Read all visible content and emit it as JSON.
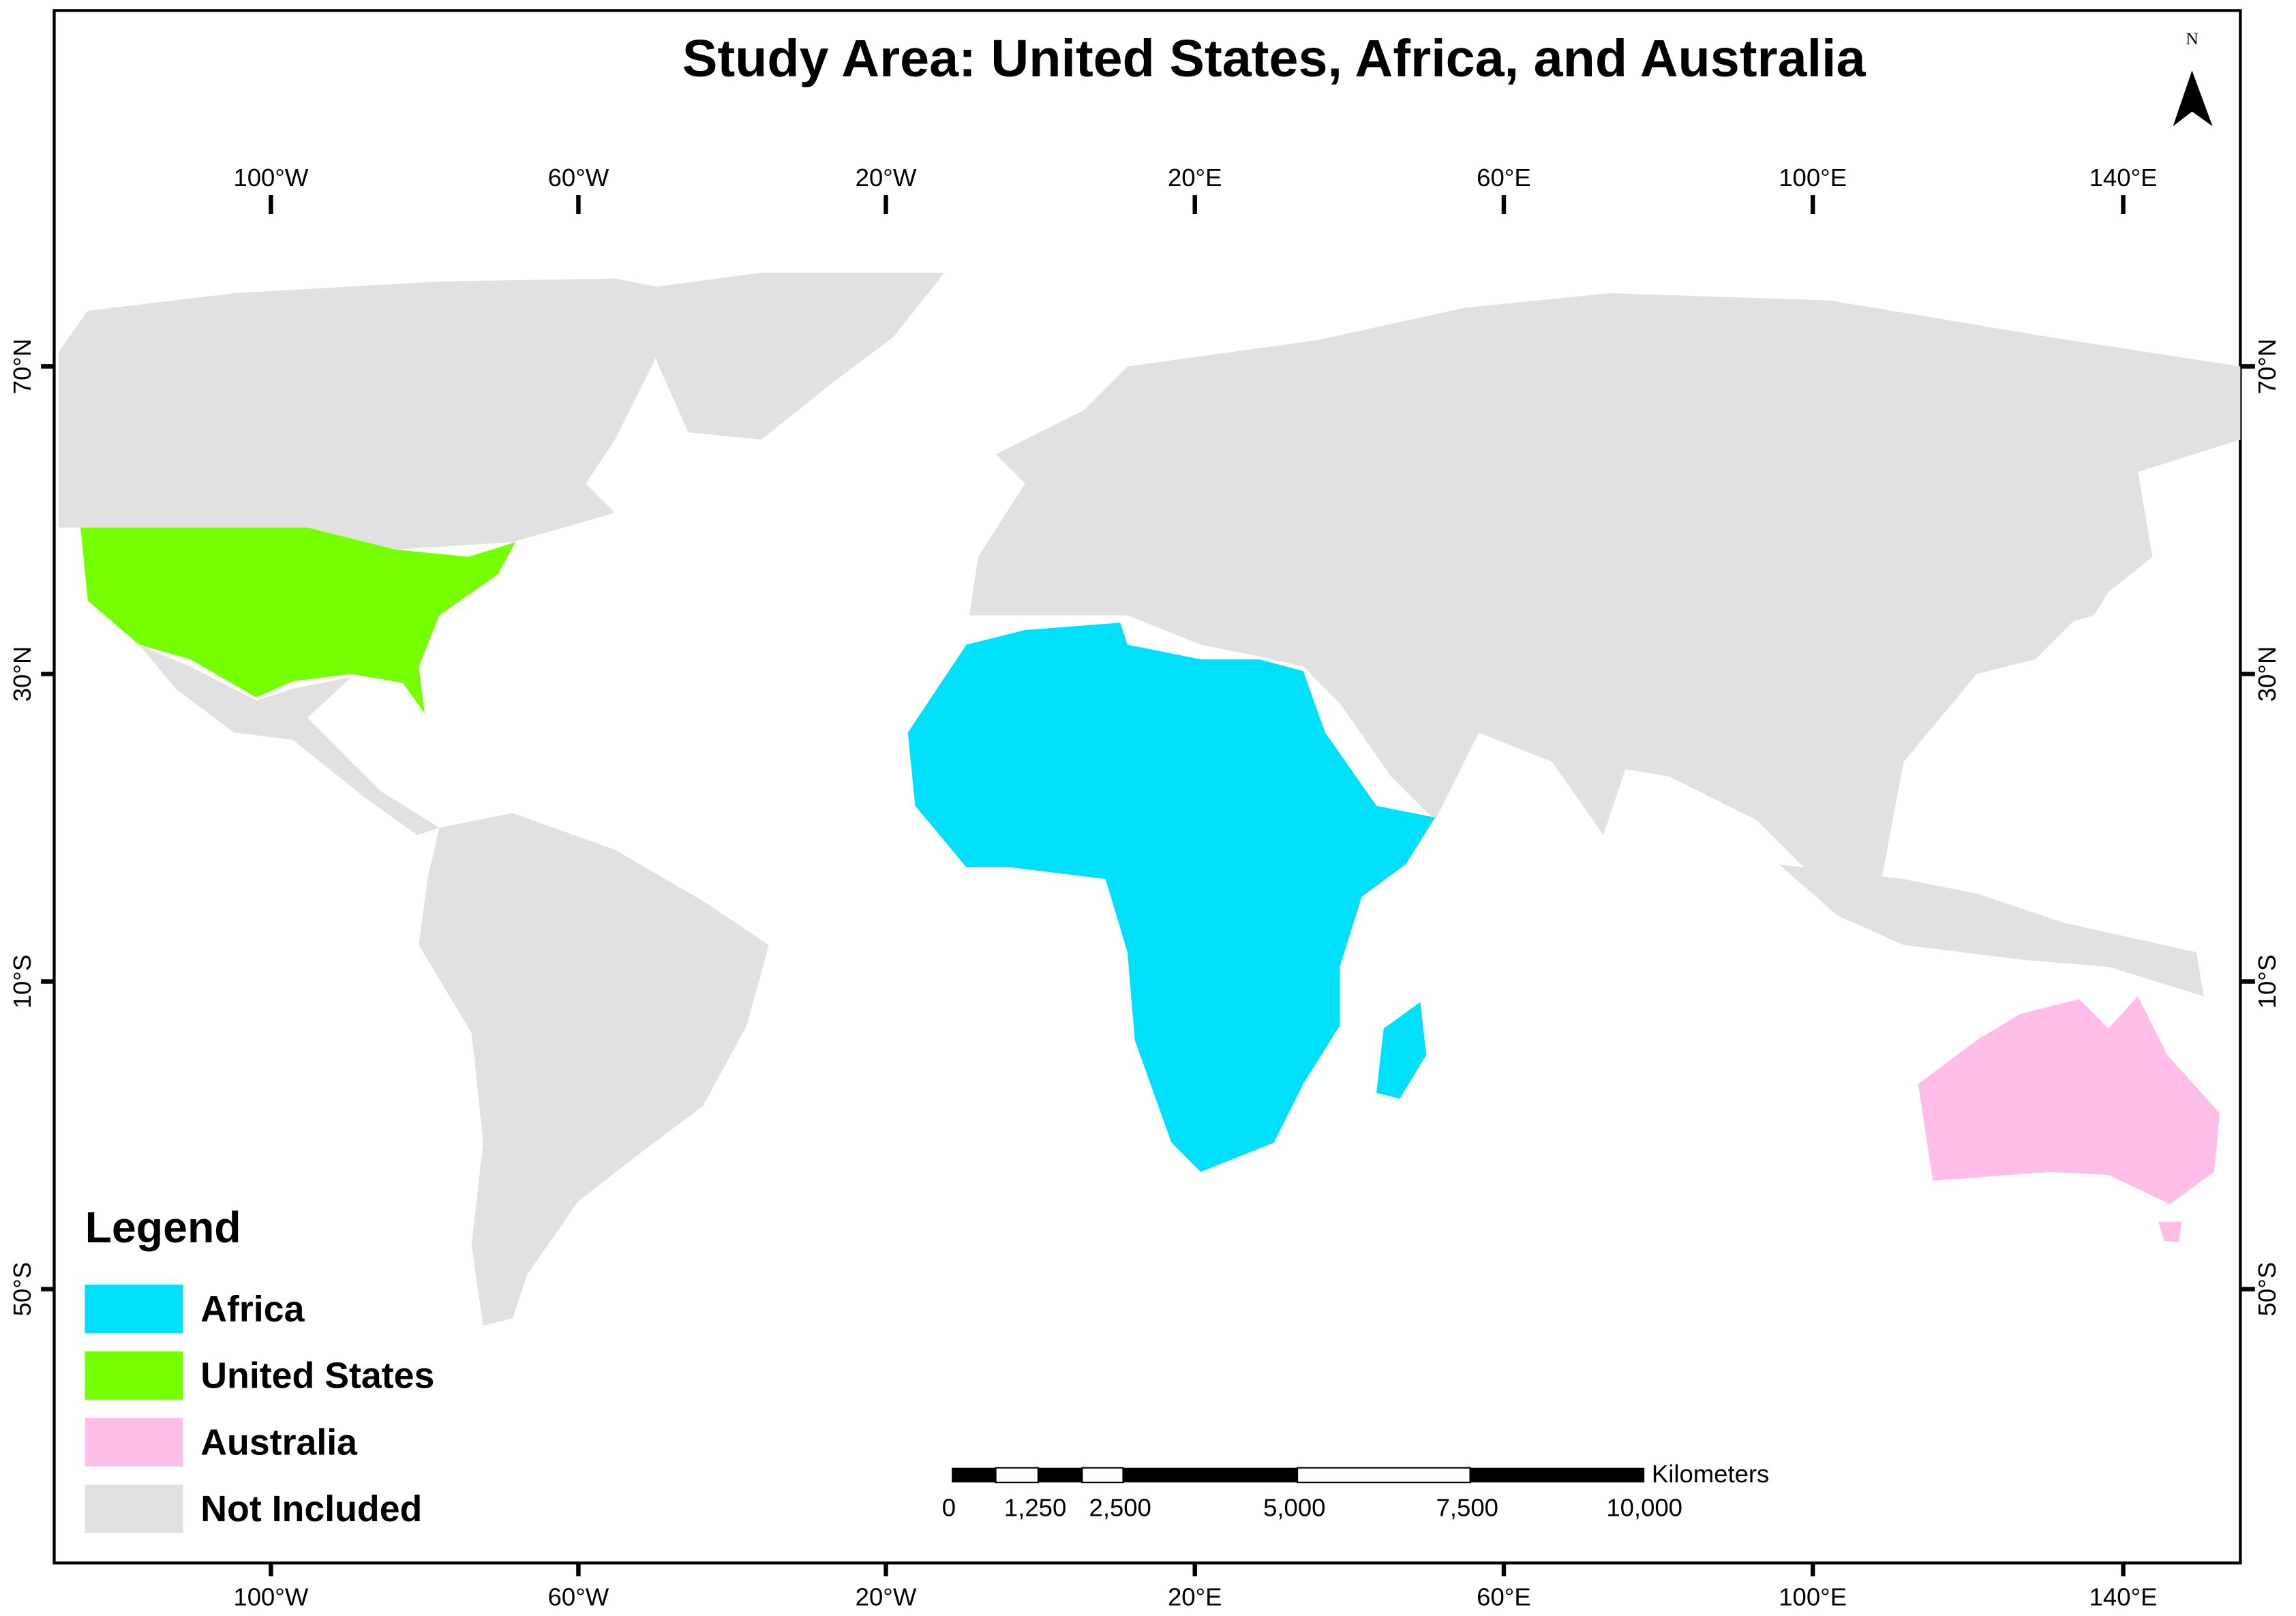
{
  "map": {
    "title": "Study Area: United States, Africa, and Australia",
    "north_arrow": {
      "label": "N"
    },
    "graticule": {
      "lon_labels": [
        "100°W",
        "60°W",
        "20°W",
        "20°E",
        "60°E",
        "100°E",
        "140°E"
      ],
      "lat_labels": [
        "70°N",
        "30°N",
        "10°S",
        "50°S"
      ]
    },
    "legend": {
      "title": "Legend",
      "items": [
        {
          "label": "Africa",
          "color": "#00e0fb"
        },
        {
          "label": "United States",
          "color": "#76ff00"
        },
        {
          "label": "Australia",
          "color": "#ffbee8"
        },
        {
          "label": "Not Included",
          "color": "#e1e1e1"
        }
      ]
    },
    "scale_bar": {
      "unit": "Kilometers",
      "labels": [
        "0",
        "1,250",
        "2,500",
        "5,000",
        "7,500",
        "10,000"
      ]
    }
  }
}
